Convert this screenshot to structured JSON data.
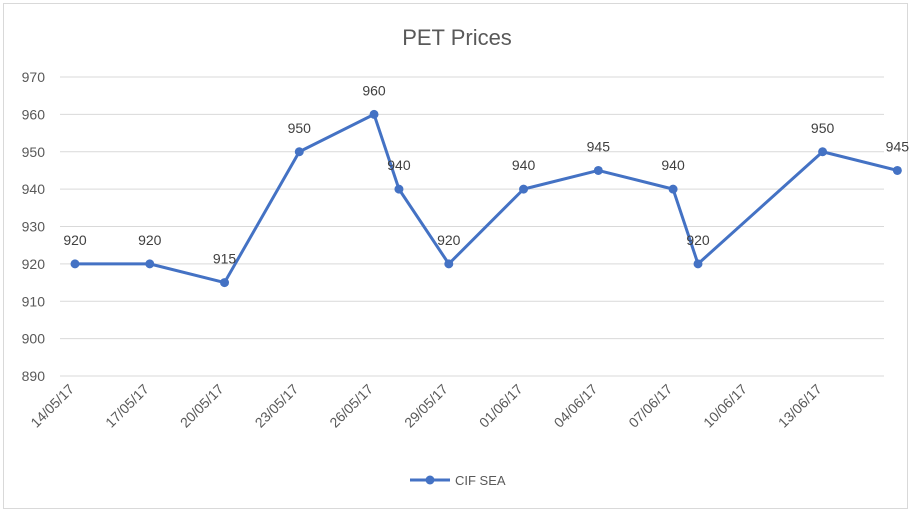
{
  "chart_data": {
    "type": "line",
    "title": "PET Prices",
    "xlabel": "",
    "ylabel": "",
    "ylim": [
      890,
      970
    ],
    "yticks": [
      890,
      900,
      910,
      920,
      930,
      940,
      950,
      960,
      970
    ],
    "x_tick_labels": [
      "14/05/17",
      "17/05/17",
      "20/05/17",
      "23/05/17",
      "26/05/17",
      "29/05/17",
      "01/06/17",
      "04/06/17",
      "07/06/17",
      "10/06/17",
      "13/06/17"
    ],
    "x": [
      "14/05/17",
      "17/05/17",
      "20/05/17",
      "23/05/17",
      "26/05/17",
      "27/05/17",
      "29/05/17",
      "01/06/17",
      "04/06/17",
      "07/06/17",
      "08/06/17",
      "13/06/17",
      "16/06/17"
    ],
    "series": [
      {
        "name": "CIF SEA",
        "color": "#4472c4",
        "values": [
          920,
          920,
          915,
          950,
          960,
          940,
          920,
          940,
          945,
          940,
          920,
          950,
          945
        ]
      }
    ],
    "grid": true,
    "legend_position": "bottom"
  }
}
